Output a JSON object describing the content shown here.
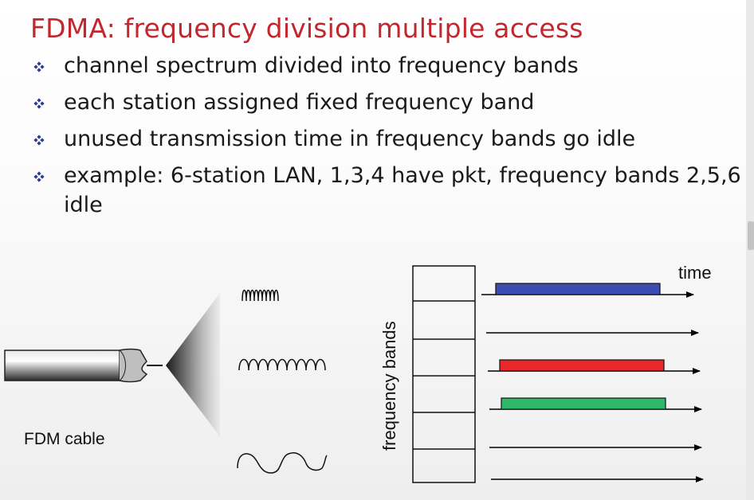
{
  "slide": {
    "title": "FDMA: frequency division multiple access",
    "title_color": "#c4262e",
    "bullet_color": "#2e3a8c",
    "bullets": [
      "channel spectrum divided into frequency bands",
      "each station assigned fixed frequency band",
      "unused transmission time in frequency bands go idle",
      "example: 6-station LAN, 1,3,4 have pkt, frequency bands 2,5,6 idle"
    ]
  },
  "diagram": {
    "cable_label": "FDM cable",
    "freq_axis_label": "frequency bands",
    "time_label": "time",
    "band_colors": {
      "band1": "#3b4cb0",
      "band3": "#e8282a",
      "band4": "#2fb86a"
    }
  }
}
